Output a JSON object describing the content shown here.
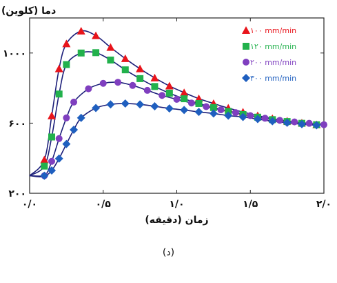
{
  "chart_data": {
    "type": "line",
    "ylabel": "دما (کلوین)",
    "xlabel": "زمان (دقیقه)",
    "xlim": [
      0,
      2.0
    ],
    "ylim": [
      200,
      1200
    ],
    "x_ticks": [
      0,
      0.5,
      1.0,
      1.5,
      2.0
    ],
    "x_tick_labels": [
      "۰/۰",
      "۰/۵",
      "۱/۰",
      "۱/۵",
      "۲/۰"
    ],
    "y_ticks": [
      200,
      600,
      1000
    ],
    "y_tick_labels": [
      "۲۰۰",
      "۶۰۰",
      "۱۰۰۰"
    ],
    "grid": false,
    "legend_position": "top-right",
    "series": [
      {
        "name": "۱۰۰ mm/min",
        "marker": "triangle",
        "color": "#e8141b",
        "points": [
          [
            0.1,
            391
          ],
          [
            0.15,
            642
          ],
          [
            0.2,
            910
          ],
          [
            0.25,
            1053
          ],
          [
            0.35,
            1125
          ],
          [
            0.45,
            1099
          ],
          [
            0.55,
            1032
          ],
          [
            0.65,
            968
          ],
          [
            0.75,
            910
          ],
          [
            0.85,
            858
          ],
          [
            0.95,
            812
          ],
          [
            1.05,
            774
          ],
          [
            1.15,
            740
          ],
          [
            1.25,
            712
          ],
          [
            1.35,
            686
          ],
          [
            1.45,
            663
          ],
          [
            1.55,
            643
          ],
          [
            1.65,
            626
          ],
          [
            1.75,
            612
          ],
          [
            1.85,
            601
          ],
          [
            1.95,
            591
          ],
          [
            2.05,
            584
          ]
        ]
      },
      {
        "name": "۱۲۰ mm/min",
        "marker": "square",
        "color": "#22b14c",
        "points": [
          [
            0.1,
            355
          ],
          [
            0.15,
            521
          ],
          [
            0.2,
            766
          ],
          [
            0.25,
            934
          ],
          [
            0.35,
            1000
          ],
          [
            0.45,
            1002
          ],
          [
            0.55,
            960
          ],
          [
            0.65,
            904
          ],
          [
            0.75,
            854
          ],
          [
            0.85,
            809
          ],
          [
            0.95,
            771
          ],
          [
            1.05,
            739
          ],
          [
            1.15,
            712
          ],
          [
            1.25,
            689
          ],
          [
            1.35,
            667
          ],
          [
            1.45,
            649
          ],
          [
            1.55,
            634
          ],
          [
            1.65,
            620
          ],
          [
            1.75,
            609
          ],
          [
            1.85,
            599
          ],
          [
            1.95,
            591
          ],
          [
            2.05,
            584
          ]
        ]
      },
      {
        "name": "۲۰۰ mm/min",
        "marker": "circle",
        "color": "#7f3fbf",
        "points": [
          [
            0.1,
            300
          ],
          [
            0.15,
            382
          ],
          [
            0.2,
            512
          ],
          [
            0.25,
            630
          ],
          [
            0.3,
            720
          ],
          [
            0.4,
            796
          ],
          [
            0.5,
            827
          ],
          [
            0.6,
            833
          ],
          [
            0.7,
            815
          ],
          [
            0.8,
            787
          ],
          [
            0.9,
            758
          ],
          [
            1.0,
            736
          ],
          [
            1.1,
            715
          ],
          [
            1.2,
            694
          ],
          [
            1.3,
            676
          ],
          [
            1.4,
            660
          ],
          [
            1.5,
            643
          ],
          [
            1.6,
            628
          ],
          [
            1.7,
            616
          ],
          [
            1.8,
            607
          ],
          [
            1.9,
            599
          ],
          [
            2.0,
            591
          ]
        ]
      },
      {
        "name": "۳۰۰ mm/min",
        "marker": "diamond",
        "color": "#1f5fbf",
        "points": [
          [
            0.1,
            300
          ],
          [
            0.15,
            330
          ],
          [
            0.2,
            398
          ],
          [
            0.25,
            481
          ],
          [
            0.3,
            562
          ],
          [
            0.35,
            630
          ],
          [
            0.45,
            686
          ],
          [
            0.55,
            707
          ],
          [
            0.65,
            712
          ],
          [
            0.75,
            707
          ],
          [
            0.85,
            696
          ],
          [
            0.95,
            684
          ],
          [
            1.05,
            675
          ],
          [
            1.15,
            664
          ],
          [
            1.25,
            655
          ],
          [
            1.35,
            643
          ],
          [
            1.45,
            635
          ],
          [
            1.55,
            623
          ],
          [
            1.65,
            611
          ],
          [
            1.75,
            602
          ],
          [
            1.85,
            594
          ],
          [
            1.95,
            588
          ],
          [
            2.05,
            583
          ]
        ]
      }
    ]
  },
  "caption": "(د)"
}
